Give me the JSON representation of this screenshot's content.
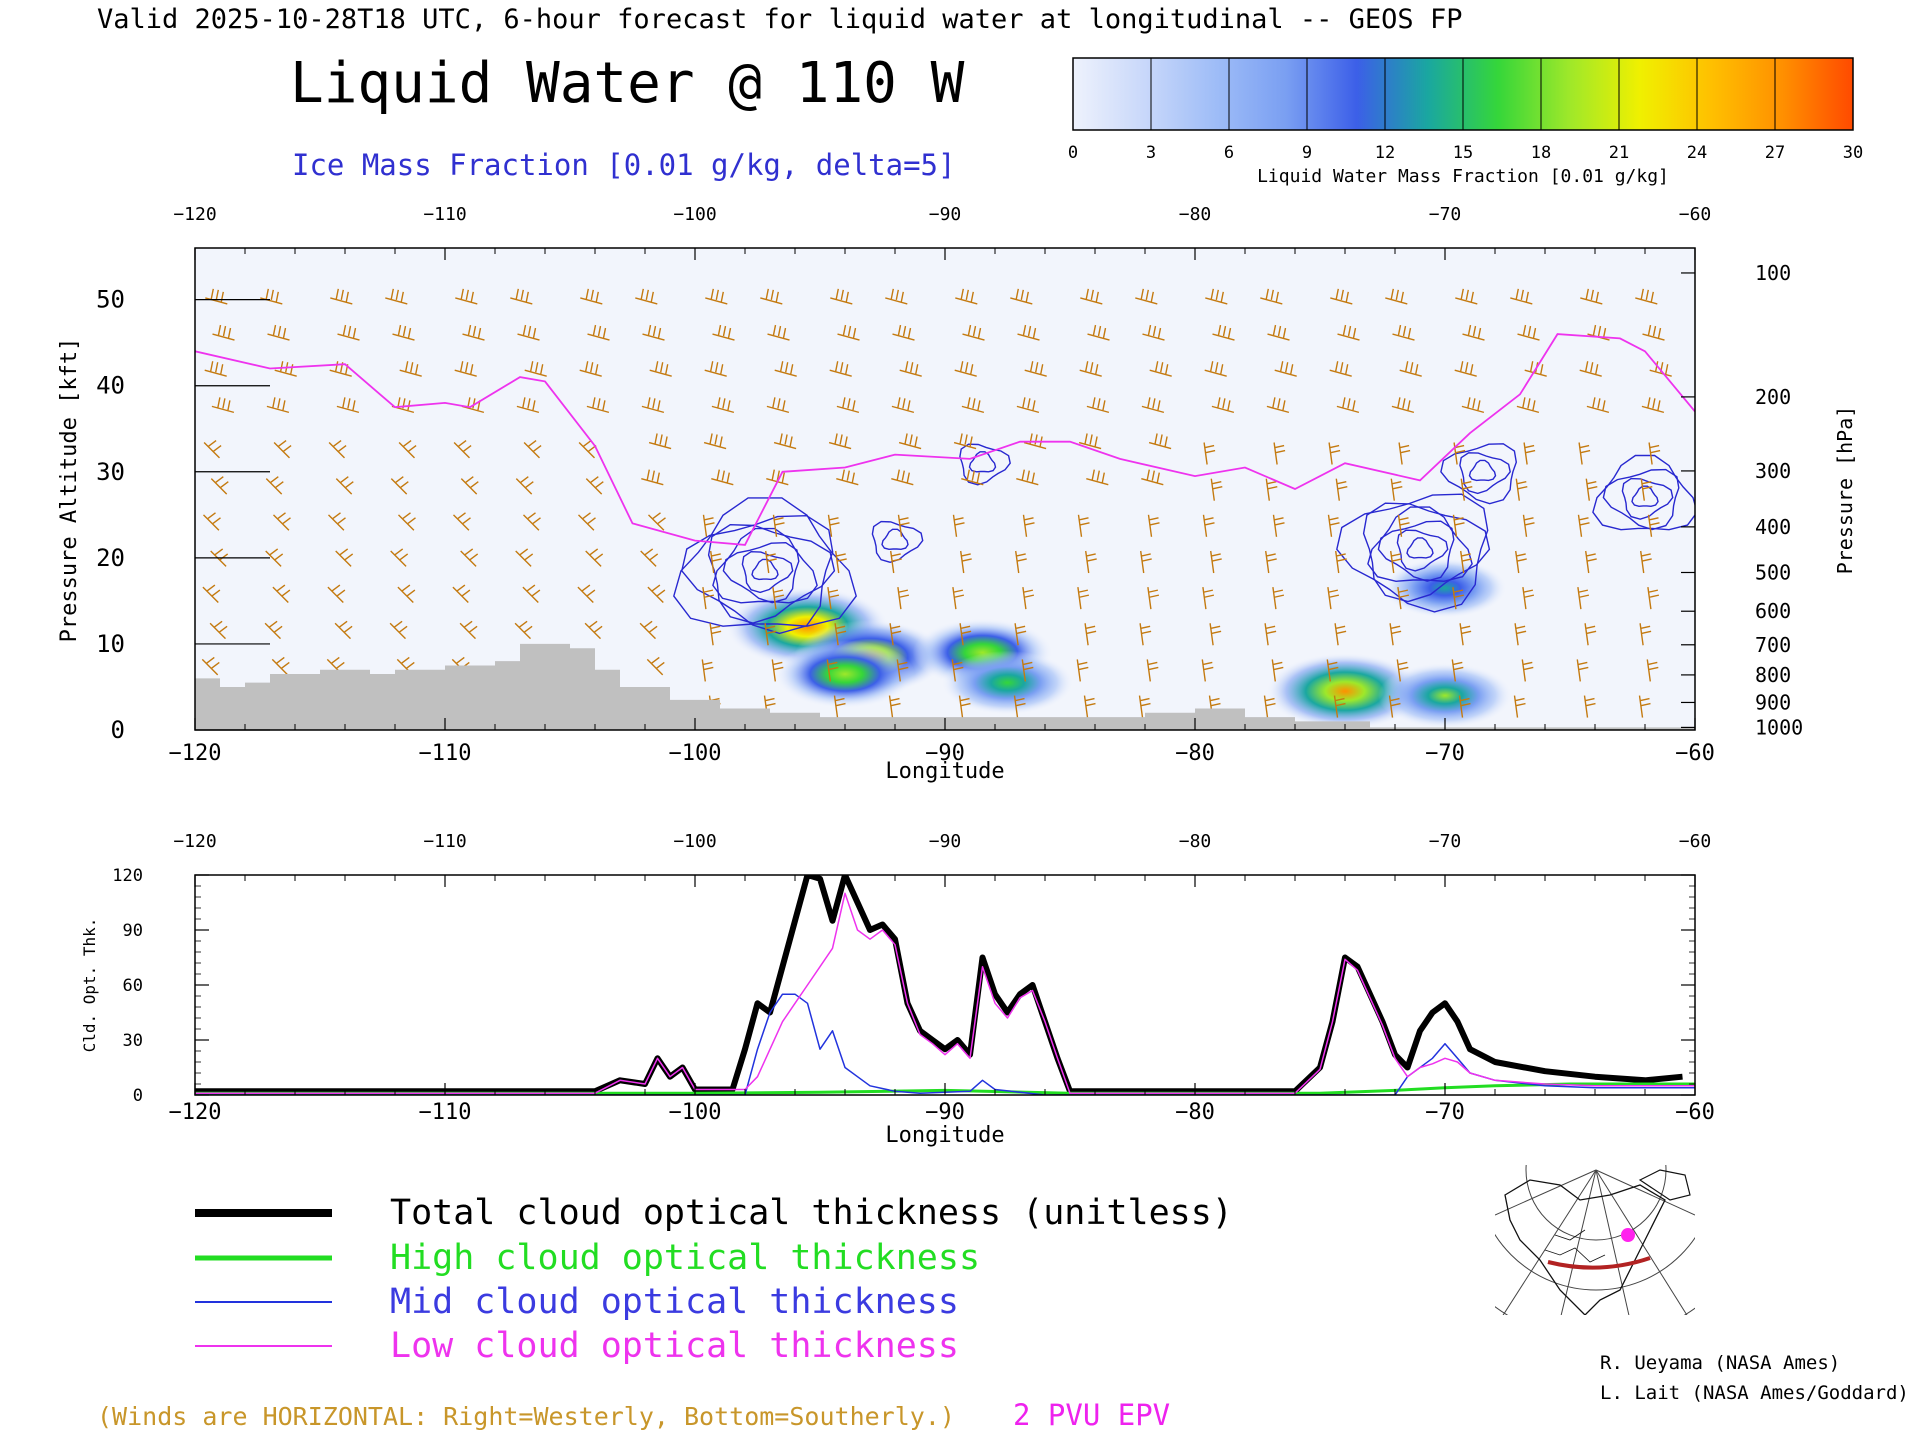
{
  "header": {
    "valid_line": "Valid 2025-10-28T18 UTC, 6-hour forecast for liquid water at longitudinal -- GEOS FP",
    "title": "Liquid Water @ 110 W",
    "ice_label": "Ice Mass Fraction [0.01 g/kg, delta=5]"
  },
  "colorbar": {
    "ticks": [
      "0",
      "3",
      "6",
      "9",
      "12",
      "15",
      "18",
      "21",
      "24",
      "27",
      "30"
    ],
    "label": "Liquid Water Mass Fraction [0.01 g/kg]",
    "colors": [
      "#eef2fc",
      "#c9d8fa",
      "#9fbdf7",
      "#7a9ff2",
      "#3c5fe8",
      "#1aa7a0",
      "#35d63a",
      "#9ee82a",
      "#f0f000",
      "#ffc000",
      "#ff9000",
      "#ff4a00"
    ]
  },
  "colors": {
    "total": "#000000",
    "high": "#22dd22",
    "mid": "#2233dd",
    "low": "#ee33ee",
    "wind": "#c47a10",
    "ice_contour": "#2828d0",
    "epv": "#ee33ee",
    "terrain": "#c0c0c0"
  },
  "chart_data": [
    {
      "type": "heatmap",
      "title": "Liquid Water @ 110 W",
      "xlabel": "Longitude",
      "ylabel": "Pressure Altitude [kft]",
      "ylabel_right": "Pressure [hPa]",
      "xlim": [
        -120,
        -60
      ],
      "ylim": [
        0,
        56
      ],
      "x_ticks": [
        "-120",
        "-110",
        "-100",
        "-90",
        "-80",
        "-70",
        "-60"
      ],
      "y_ticks": [
        "0",
        "10",
        "20",
        "30",
        "40",
        "50"
      ],
      "pressure_ticks": [
        {
          "label": "100",
          "kft": 53.1
        },
        {
          "label": "200",
          "kft": 38.7
        },
        {
          "label": "300",
          "kft": 30.1
        },
        {
          "label": "400",
          "kft": 23.6
        },
        {
          "label": "500",
          "kft": 18.3
        },
        {
          "label": "600",
          "kft": 13.8
        },
        {
          "label": "700",
          "kft": 9.9
        },
        {
          "label": "800",
          "kft": 6.4
        },
        {
          "label": "900",
          "kft": 3.2
        },
        {
          "label": "1000",
          "kft": 0.3
        }
      ],
      "liquid_water_blobs": [
        {
          "lon": -95.5,
          "kft": 12,
          "peak": 28
        },
        {
          "lon": -93,
          "kft": 8.5,
          "peak": 24
        },
        {
          "lon": -94,
          "kft": 6.5,
          "peak": 20
        },
        {
          "lon": -88.5,
          "kft": 9,
          "peak": 20
        },
        {
          "lon": -87.5,
          "kft": 5.5,
          "peak": 17
        },
        {
          "lon": -74,
          "kft": 4.5,
          "peak": 26
        },
        {
          "lon": -70,
          "kft": 4.0,
          "peak": 18
        },
        {
          "lon": -70,
          "kft": 16.5,
          "peak": 14
        }
      ],
      "ice_cores": [
        {
          "lon": -97.2,
          "kft": 18.5,
          "levels": 7
        },
        {
          "lon": -71,
          "kft": 21,
          "levels": 6
        },
        {
          "lon": -68.5,
          "kft": 30,
          "levels": 3
        },
        {
          "lon": -62,
          "kft": 27,
          "levels": 4
        },
        {
          "lon": -92,
          "kft": 22,
          "levels": 2
        },
        {
          "lon": -88.5,
          "kft": 31,
          "levels": 2
        }
      ],
      "epv_2pvu_kft": [
        [
          -120,
          44
        ],
        [
          -117,
          42
        ],
        [
          -114,
          42.5
        ],
        [
          -112,
          37.5
        ],
        [
          -110,
          38
        ],
        [
          -109,
          37.5
        ],
        [
          -107,
          41
        ],
        [
          -106,
          40.5
        ],
        [
          -104,
          33
        ],
        [
          -102.5,
          24
        ],
        [
          -100,
          22
        ],
        [
          -98,
          21.5
        ],
        [
          -96.5,
          30
        ],
        [
          -94,
          30.5
        ],
        [
          -92,
          32
        ],
        [
          -89,
          31.5
        ],
        [
          -87,
          33.5
        ],
        [
          -85,
          33.5
        ],
        [
          -83,
          31.5
        ],
        [
          -80,
          29.5
        ],
        [
          -78,
          30.5
        ],
        [
          -76,
          28
        ],
        [
          -74,
          31
        ],
        [
          -71,
          29
        ],
        [
          -69,
          34.5
        ],
        [
          -67,
          39
        ],
        [
          -65.5,
          46
        ],
        [
          -63,
          45.5
        ],
        [
          -62,
          44
        ],
        [
          -60,
          37
        ]
      ],
      "terrain_kft": [
        [
          -120,
          6
        ],
        [
          -119,
          5
        ],
        [
          -118,
          5.5
        ],
        [
          -117,
          6.5
        ],
        [
          -115,
          7
        ],
        [
          -113,
          6.5
        ],
        [
          -112,
          7
        ],
        [
          -110,
          7.5
        ],
        [
          -108,
          8
        ],
        [
          -107,
          10
        ],
        [
          -105,
          9.5
        ],
        [
          -104,
          7
        ],
        [
          -103,
          5
        ],
        [
          -101,
          3.5
        ],
        [
          -99,
          2.5
        ],
        [
          -97,
          2
        ],
        [
          -95,
          1.5
        ],
        [
          -90,
          1.5
        ],
        [
          -85,
          1.5
        ],
        [
          -82,
          2
        ],
        [
          -80,
          2.5
        ],
        [
          -78,
          1.5
        ],
        [
          -76,
          1
        ],
        [
          -73,
          0.3
        ],
        [
          -60,
          0.3
        ]
      ],
      "winds_note": "(Winds are HORIZONTAL: Right=Westerly, Bottom=Southerly.)"
    },
    {
      "type": "line",
      "xlabel": "Longitude",
      "ylabel": "Cld. Opt. Thk.",
      "xlim": [
        -120,
        -60
      ],
      "ylim": [
        0,
        120
      ],
      "x_ticks": [
        "-120",
        "-110",
        "-100",
        "-90",
        "-80",
        "-70",
        "-60"
      ],
      "y_ticks": [
        "0",
        "30",
        "60",
        "90",
        "120"
      ],
      "series": [
        {
          "name": "Total cloud optical thickness (unitless)",
          "key": "total",
          "width": 6,
          "points": [
            [
              -120,
              2
            ],
            [
              -104,
              2
            ],
            [
              -103,
              8
            ],
            [
              -102,
              6
            ],
            [
              -101.5,
              20
            ],
            [
              -101,
              10
            ],
            [
              -100.5,
              15
            ],
            [
              -100,
              3
            ],
            [
              -98.5,
              3
            ],
            [
              -98,
              25
            ],
            [
              -97.5,
              50
            ],
            [
              -97,
              45
            ],
            [
              -96.5,
              70
            ],
            [
              -96,
              95
            ],
            [
              -95.5,
              120
            ],
            [
              -95,
              118
            ],
            [
              -94.5,
              95
            ],
            [
              -94,
              120
            ],
            [
              -93.5,
              105
            ],
            [
              -93,
              90
            ],
            [
              -92.5,
              93
            ],
            [
              -92,
              85
            ],
            [
              -91.5,
              50
            ],
            [
              -91,
              35
            ],
            [
              -90.5,
              30
            ],
            [
              -90,
              25
            ],
            [
              -89.5,
              30
            ],
            [
              -89,
              22
            ],
            [
              -88.5,
              75
            ],
            [
              -88,
              55
            ],
            [
              -87.5,
              45
            ],
            [
              -87,
              55
            ],
            [
              -86.5,
              60
            ],
            [
              -86,
              40
            ],
            [
              -85.5,
              20
            ],
            [
              -85,
              2
            ],
            [
              -76,
              2
            ],
            [
              -75,
              15
            ],
            [
              -74.5,
              40
            ],
            [
              -74,
              75
            ],
            [
              -73.5,
              70
            ],
            [
              -73,
              55
            ],
            [
              -72.5,
              40
            ],
            [
              -72,
              22
            ],
            [
              -71.5,
              15
            ],
            [
              -71,
              35
            ],
            [
              -70.5,
              45
            ],
            [
              -70,
              50
            ],
            [
              -69.5,
              40
            ],
            [
              -69,
              25
            ],
            [
              -68,
              18
            ],
            [
              -66,
              13
            ],
            [
              -64,
              10
            ],
            [
              -62,
              8
            ],
            [
              -60.5,
              10
            ]
          ]
        },
        {
          "name": "High cloud optical thickness",
          "key": "high",
          "width": 3,
          "points": [
            [
              -120,
              1
            ],
            [
              -100,
              1
            ],
            [
              -95,
              1.5
            ],
            [
              -90,
              2.5
            ],
            [
              -85,
              1
            ],
            [
              -75,
              1
            ],
            [
              -72,
              2.5
            ],
            [
              -70,
              4
            ],
            [
              -68,
              5
            ],
            [
              -65,
              6
            ],
            [
              -60,
              6
            ]
          ]
        },
        {
          "name": "Mid cloud optical thickness",
          "key": "mid",
          "width": 1.5,
          "points": [
            [
              -120,
              0
            ],
            [
              -98,
              0
            ],
            [
              -97.5,
              25
            ],
            [
              -97,
              45
            ],
            [
              -96.5,
              55
            ],
            [
              -96,
              55
            ],
            [
              -95.5,
              50
            ],
            [
              -95,
              25
            ],
            [
              -94.5,
              35
            ],
            [
              -94,
              15
            ],
            [
              -93.5,
              10
            ],
            [
              -93,
              5
            ],
            [
              -92,
              2
            ],
            [
              -91,
              1
            ],
            [
              -89,
              2
            ],
            [
              -88.5,
              8
            ],
            [
              -88,
              3
            ],
            [
              -86,
              0
            ],
            [
              -72,
              0
            ],
            [
              -71.5,
              10
            ],
            [
              -70.5,
              20
            ],
            [
              -70,
              28
            ],
            [
              -69.5,
              20
            ],
            [
              -69,
              12
            ],
            [
              -68,
              8
            ],
            [
              -66,
              5
            ],
            [
              -64,
              4
            ],
            [
              -60,
              4
            ]
          ]
        },
        {
          "name": "Low cloud optical thickness",
          "key": "low",
          "width": 1.5,
          "points": [
            [
              -120,
              1
            ],
            [
              -104,
              1
            ],
            [
              -103,
              8
            ],
            [
              -102,
              6
            ],
            [
              -101.5,
              20
            ],
            [
              -101,
              10
            ],
            [
              -100.5,
              15
            ],
            [
              -100,
              3
            ],
            [
              -98,
              3
            ],
            [
              -97.5,
              10
            ],
            [
              -96.5,
              40
            ],
            [
              -96,
              50
            ],
            [
              -95.5,
              60
            ],
            [
              -95,
              70
            ],
            [
              -94.5,
              80
            ],
            [
              -94,
              110
            ],
            [
              -93.5,
              90
            ],
            [
              -93,
              85
            ],
            [
              -92.5,
              90
            ],
            [
              -92,
              82
            ],
            [
              -91.5,
              50
            ],
            [
              -91,
              33
            ],
            [
              -90.5,
              28
            ],
            [
              -90,
              22
            ],
            [
              -89.5,
              28
            ],
            [
              -89,
              20
            ],
            [
              -88.5,
              70
            ],
            [
              -88,
              50
            ],
            [
              -87.5,
              42
            ],
            [
              -87,
              53
            ],
            [
              -86.5,
              57
            ],
            [
              -86,
              40
            ],
            [
              -85.5,
              20
            ],
            [
              -85,
              1
            ],
            [
              -76,
              1
            ],
            [
              -75,
              14
            ],
            [
              -74.5,
              40
            ],
            [
              -74,
              74
            ],
            [
              -73.5,
              68
            ],
            [
              -73,
              53
            ],
            [
              -72.5,
              38
            ],
            [
              -72,
              20
            ],
            [
              -71.5,
              10
            ],
            [
              -71,
              15
            ],
            [
              -70.5,
              17
            ],
            [
              -70,
              20
            ],
            [
              -69.5,
              18
            ],
            [
              -69,
              12
            ],
            [
              -68,
              8
            ],
            [
              -66,
              6
            ],
            [
              -64,
              5
            ],
            [
              -60,
              5
            ]
          ]
        }
      ]
    }
  ],
  "legend": {
    "total": "Total cloud optical thickness (unitless)",
    "high": "High cloud optical thickness",
    "mid": "Mid cloud optical thickness",
    "low": "Low cloud optical thickness"
  },
  "footer": {
    "winds_note": "(Winds are HORIZONTAL: Right=Westerly, Bottom=Southerly.)",
    "epv_label": "2 PVU EPV",
    "credit1": "R. Ueyama (NASA Ames)",
    "credit2": "L. Lait (NASA Ames/Goddard)"
  },
  "locator_map": {
    "icon": "north-america-polar-map-icon"
  }
}
